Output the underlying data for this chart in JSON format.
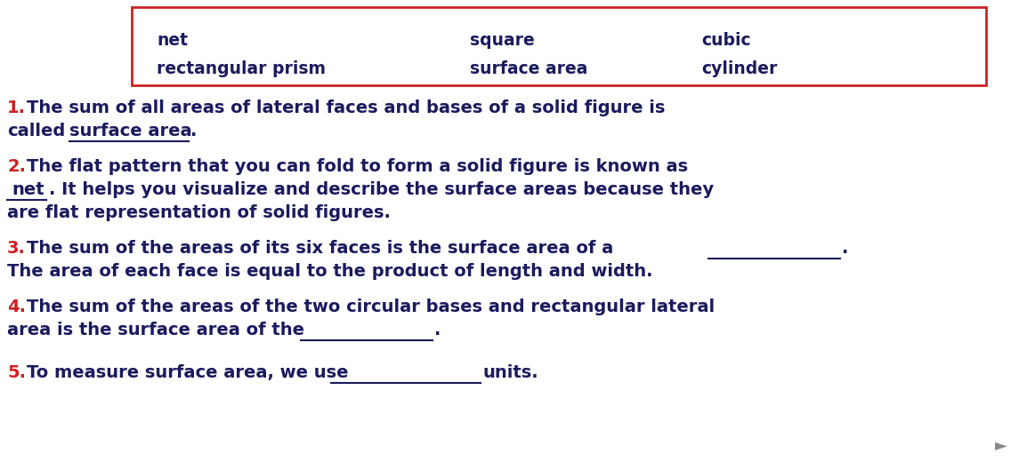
{
  "bg_color": "#ffffff",
  "box_color": "#cc2222",
  "text_color_dark": "#1a1a5e",
  "text_color_red": "#cc2222",
  "box_words": [
    [
      "net",
      "square",
      "cubic"
    ],
    [
      "rectangular prism",
      "surface area",
      "cylinder"
    ]
  ]
}
